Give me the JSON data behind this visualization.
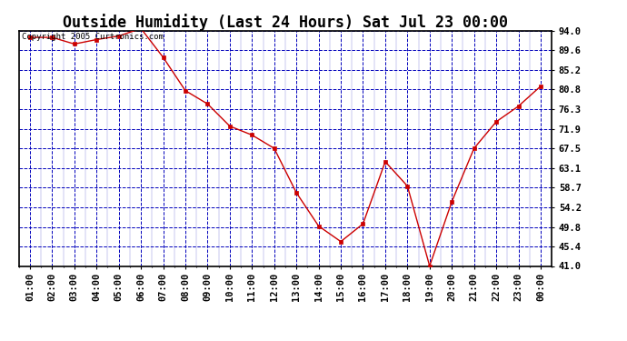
{
  "title": "Outside Humidity (Last 24 Hours) Sat Jul 23 00:00",
  "copyright": "Copyright 2005 Curtronics.com",
  "x_labels": [
    "01:00",
    "02:00",
    "03:00",
    "04:00",
    "05:00",
    "06:00",
    "07:00",
    "08:00",
    "09:00",
    "10:00",
    "11:00",
    "12:00",
    "13:00",
    "14:00",
    "15:00",
    "16:00",
    "17:00",
    "18:00",
    "19:00",
    "20:00",
    "21:00",
    "22:00",
    "23:00",
    "00:00"
  ],
  "x_values": [
    1,
    2,
    3,
    4,
    5,
    6,
    7,
    8,
    9,
    10,
    11,
    12,
    13,
    14,
    15,
    16,
    17,
    18,
    19,
    20,
    21,
    22,
    23,
    24
  ],
  "y_values": [
    92.5,
    92.5,
    91.0,
    92.0,
    92.8,
    94.5,
    88.0,
    80.5,
    77.5,
    72.5,
    70.5,
    67.5,
    57.5,
    50.0,
    46.5,
    50.5,
    64.5,
    59.0,
    41.0,
    55.5,
    67.5,
    73.5,
    77.0,
    81.5
  ],
  "line_color": "#cc0000",
  "marker_color": "#cc0000",
  "marker": "s",
  "marker_size": 2.5,
  "fig_bg_color": "#ffffff",
  "plot_bg_color": "#ffffff",
  "grid_color": "#0000bb",
  "axis_label_color": "#000000",
  "title_color": "#000000",
  "border_color": "#000000",
  "ylim": [
    41.0,
    94.0
  ],
  "yticks": [
    41.0,
    45.4,
    49.8,
    54.2,
    58.7,
    63.1,
    67.5,
    71.9,
    76.3,
    80.8,
    85.2,
    89.6,
    94.0
  ],
  "title_fontsize": 12,
  "tick_fontsize": 7.5,
  "copyright_fontsize": 6.5
}
